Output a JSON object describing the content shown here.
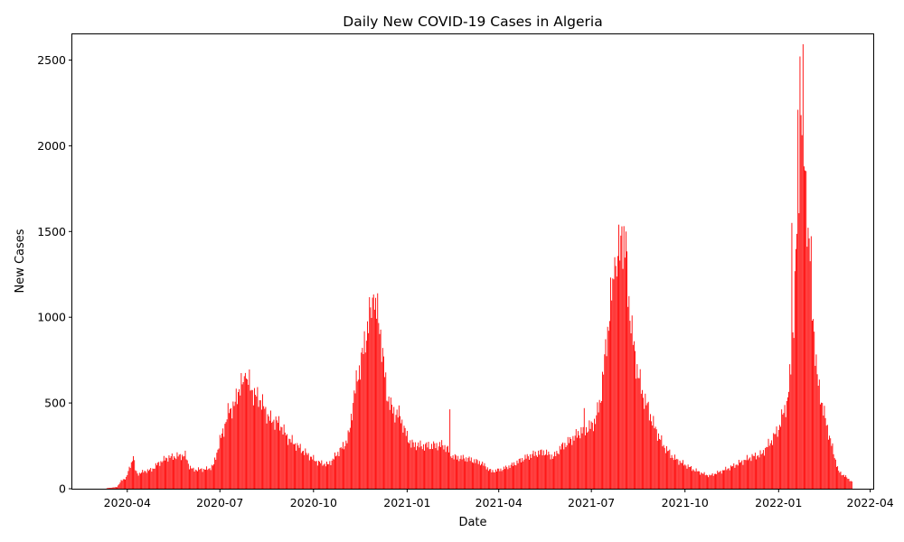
{
  "chart_data": {
    "type": "bar",
    "title": "Daily New COVID-19 Cases in Algeria",
    "xlabel": "Date",
    "ylabel": "New Cases",
    "x_range": [
      "2020-02-07",
      "2022-04-04"
    ],
    "ylim": [
      0,
      2650
    ],
    "yticks": [
      0,
      500,
      1000,
      1500,
      2000,
      2500
    ],
    "xticks": [
      "2020-04",
      "2020-07",
      "2020-10",
      "2021-01",
      "2021-04",
      "2021-07",
      "2021-10",
      "2022-01",
      "2022-04"
    ],
    "bar_color": "#ff0000",
    "grid": false,
    "date_start": "2020-03-12",
    "date_end": "2022-03-14",
    "points": [
      [
        "2020-03-12",
        3
      ],
      [
        "2020-03-22",
        10
      ],
      [
        "2020-03-26",
        45
      ],
      [
        "2020-03-31",
        65
      ],
      [
        "2020-04-05",
        150
      ],
      [
        "2020-04-07",
        190
      ],
      [
        "2020-04-09",
        110
      ],
      [
        "2020-04-11",
        85
      ],
      [
        "2020-04-15",
        95
      ],
      [
        "2020-04-20",
        105
      ],
      [
        "2020-04-25",
        110
      ],
      [
        "2020-05-01",
        145
      ],
      [
        "2020-05-10",
        180
      ],
      [
        "2020-05-20",
        190
      ],
      [
        "2020-05-28",
        195
      ],
      [
        "2020-06-01",
        130
      ],
      [
        "2020-06-05",
        110
      ],
      [
        "2020-06-20",
        115
      ],
      [
        "2020-06-25",
        140
      ],
      [
        "2020-07-01",
        280
      ],
      [
        "2020-07-05",
        350
      ],
      [
        "2020-07-10",
        460
      ],
      [
        "2020-07-15",
        480
      ],
      [
        "2020-07-20",
        590
      ],
      [
        "2020-07-25",
        620
      ],
      [
        "2020-07-28",
        640
      ],
      [
        "2020-08-01",
        580
      ],
      [
        "2020-08-05",
        540
      ],
      [
        "2020-08-10",
        520
      ],
      [
        "2020-08-15",
        450
      ],
      [
        "2020-08-20",
        400
      ],
      [
        "2020-08-25",
        395
      ],
      [
        "2020-08-30",
        370
      ],
      [
        "2020-09-05",
        300
      ],
      [
        "2020-09-15",
        250
      ],
      [
        "2020-09-25",
        200
      ],
      [
        "2020-10-05",
        155
      ],
      [
        "2020-10-15",
        140
      ],
      [
        "2020-10-20",
        170
      ],
      [
        "2020-10-25",
        210
      ],
      [
        "2020-11-01",
        260
      ],
      [
        "2020-11-05",
        320
      ],
      [
        "2020-11-10",
        550
      ],
      [
        "2020-11-15",
        700
      ],
      [
        "2020-11-20",
        830
      ],
      [
        "2020-11-24",
        990
      ],
      [
        "2020-11-28",
        1050
      ],
      [
        "2020-12-01",
        1060
      ],
      [
        "2020-12-05",
        960
      ],
      [
        "2020-12-08",
        780
      ],
      [
        "2020-12-12",
        560
      ],
      [
        "2020-12-16",
        480
      ],
      [
        "2020-12-20",
        440
      ],
      [
        "2020-12-25",
        430
      ],
      [
        "2020-12-30",
        330
      ],
      [
        "2021-01-05",
        260
      ],
      [
        "2021-01-15",
        250
      ],
      [
        "2021-01-25",
        250
      ],
      [
        "2021-02-05",
        255
      ],
      [
        "2021-02-10",
        230
      ],
      [
        "2021-02-15",
        185
      ],
      [
        "2021-03-01",
        175
      ],
      [
        "2021-03-15",
        150
      ],
      [
        "2021-03-25",
        100
      ],
      [
        "2021-04-05",
        115
      ],
      [
        "2021-04-15",
        140
      ],
      [
        "2021-04-25",
        175
      ],
      [
        "2021-05-05",
        200
      ],
      [
        "2021-05-15",
        215
      ],
      [
        "2021-05-25",
        185
      ],
      [
        "2021-06-01",
        240
      ],
      [
        "2021-06-10",
        280
      ],
      [
        "2021-06-20",
        330
      ],
      [
        "2021-06-30",
        360
      ],
      [
        "2021-07-05",
        400
      ],
      [
        "2021-07-10",
        520
      ],
      [
        "2021-07-15",
        800
      ],
      [
        "2021-07-20",
        1100
      ],
      [
        "2021-07-25",
        1250
      ],
      [
        "2021-07-28",
        1400
      ],
      [
        "2021-08-01",
        1450
      ],
      [
        "2021-08-04",
        1350
      ],
      [
        "2021-08-07",
        1100
      ],
      [
        "2021-08-10",
        900
      ],
      [
        "2021-08-15",
        700
      ],
      [
        "2021-08-20",
        560
      ],
      [
        "2021-08-25",
        480
      ],
      [
        "2021-09-01",
        360
      ],
      [
        "2021-09-10",
        250
      ],
      [
        "2021-09-20",
        180
      ],
      [
        "2021-10-01",
        140
      ],
      [
        "2021-10-10",
        110
      ],
      [
        "2021-10-20",
        85
      ],
      [
        "2021-10-25",
        75
      ],
      [
        "2021-11-05",
        100
      ],
      [
        "2021-11-15",
        125
      ],
      [
        "2021-11-25",
        155
      ],
      [
        "2021-12-05",
        185
      ],
      [
        "2021-12-15",
        200
      ],
      [
        "2021-12-25",
        280
      ],
      [
        "2022-01-01",
        350
      ],
      [
        "2022-01-05",
        430
      ],
      [
        "2022-01-10",
        520
      ],
      [
        "2022-01-13",
        700
      ],
      [
        "2022-01-16",
        1000
      ],
      [
        "2022-01-18",
        1350
      ],
      [
        "2022-01-21",
        1800
      ],
      [
        "2022-01-23",
        2150
      ],
      [
        "2022-01-25",
        2300
      ],
      [
        "2022-01-27",
        1900
      ],
      [
        "2022-01-30",
        1500
      ],
      [
        "2022-02-02",
        1300
      ],
      [
        "2022-02-05",
        900
      ],
      [
        "2022-02-08",
        640
      ],
      [
        "2022-02-12",
        520
      ],
      [
        "2022-02-15",
        430
      ],
      [
        "2022-02-19",
        330
      ],
      [
        "2022-02-24",
        210
      ],
      [
        "2022-03-01",
        100
      ],
      [
        "2022-03-08",
        70
      ],
      [
        "2022-03-14",
        40
      ]
    ],
    "spikes": [
      [
        "2020-04-07",
        190
      ],
      [
        "2020-07-26",
        675
      ],
      [
        "2020-11-29",
        1133
      ],
      [
        "2021-02-12",
        463
      ],
      [
        "2021-06-24",
        470
      ],
      [
        "2021-07-24",
        1350
      ],
      [
        "2021-07-28",
        1540
      ],
      [
        "2021-07-31",
        1530
      ],
      [
        "2021-08-04",
        1500
      ],
      [
        "2022-01-14",
        1550
      ],
      [
        "2022-01-20",
        2210
      ],
      [
        "2022-01-22",
        2521
      ],
      [
        "2022-01-26",
        1880
      ],
      [
        "2022-01-31",
        1460
      ],
      [
        "2022-02-03",
        980
      ]
    ]
  }
}
